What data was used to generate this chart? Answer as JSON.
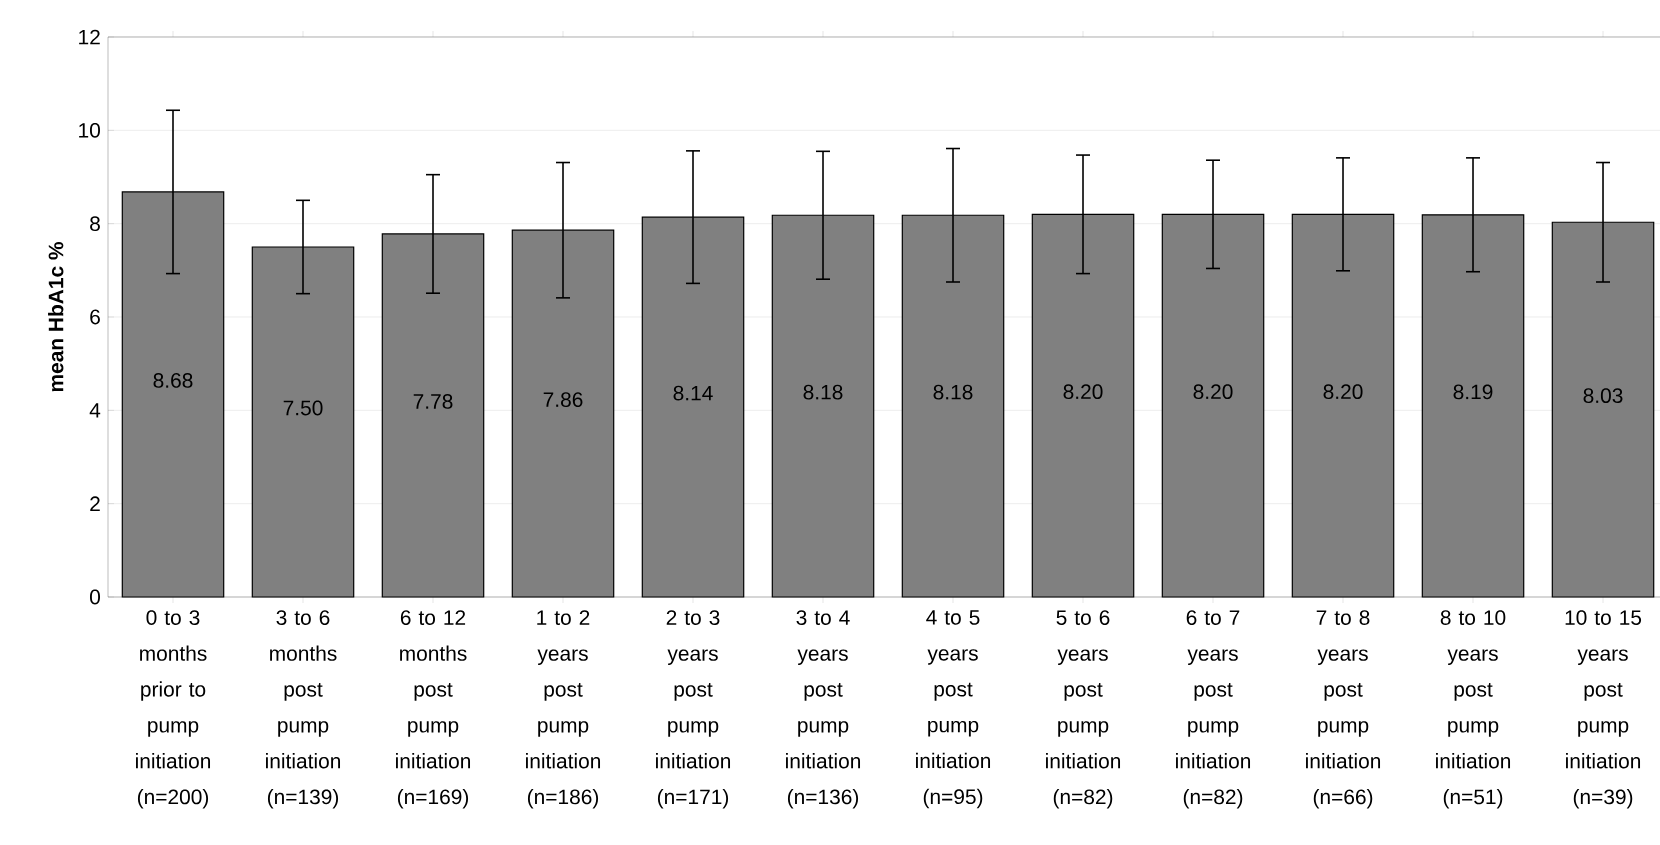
{
  "chart_data": {
    "type": "bar",
    "ylabel": "mean HbA1c %",
    "categories": [
      "0 to 3 months prior to pump initiation (n=200)",
      "3 to 6 months post pump initiation (n=139)",
      "6 to 12 months post pump initiation (n=169)",
      "1 to 2 years post pump initiation (n=186)",
      "2 to 3 years post pump initiation (n=171)",
      "3 to 4 years post pump initiation (n=136)",
      "4 to 5 years post pump initiation (n=95)",
      "5 to 6 years post pump initiation (n=82)",
      "6 to 7 years post pump initiation (n=82)",
      "7 to 8 years post pump initiation (n=66)",
      "8 to 10 years post pump initiation (n=51)",
      "10 to 15 years post pump initiation (n=39)"
    ],
    "values": [
      8.68,
      7.5,
      7.78,
      7.86,
      8.14,
      8.18,
      8.18,
      8.2,
      8.2,
      8.2,
      8.19,
      8.03
    ],
    "value_labels": [
      "8.68",
      "7.50",
      "7.78",
      "7.86",
      "8.14",
      "8.18",
      "8.18",
      "8.20",
      "8.20",
      "8.20",
      "8.19",
      "8.03"
    ],
    "errors": [
      1.75,
      1.0,
      1.27,
      1.45,
      1.42,
      1.37,
      1.43,
      1.27,
      1.16,
      1.21,
      1.22,
      1.28
    ],
    "color": "#808080",
    "ylim": [
      0,
      12
    ],
    "yticks": [
      0,
      2,
      4,
      6,
      8,
      10,
      12
    ],
    "grid": "y"
  }
}
